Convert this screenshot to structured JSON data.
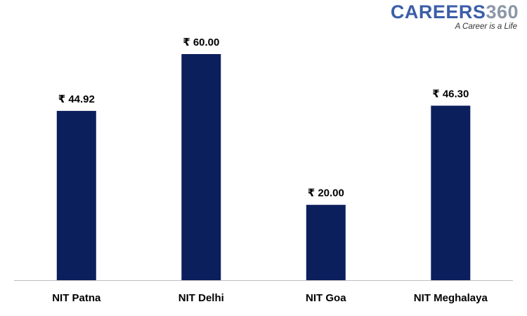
{
  "logo": {
    "brand": "CAREERS",
    "number": "360",
    "tagline": "A Career is a Life"
  },
  "colors": {
    "bar": "#0b1f5c",
    "axis": "#bfbfbf",
    "brand": "#3b5ea8",
    "brand_number": "#8c97a8"
  },
  "chart_data": {
    "type": "bar",
    "title": "",
    "xlabel": "",
    "ylabel": "",
    "categories": [
      "NIT Patna",
      "NIT Delhi",
      "NIT Goa",
      "NIT Meghalaya"
    ],
    "values": [
      44.92,
      60.0,
      20.0,
      46.3
    ],
    "data_labels": [
      "₹ 44.92",
      "₹ 60.00",
      "₹ 20.00",
      "₹ 46.30"
    ],
    "ylim": [
      0,
      60
    ],
    "grid": false,
    "legend": "none"
  }
}
